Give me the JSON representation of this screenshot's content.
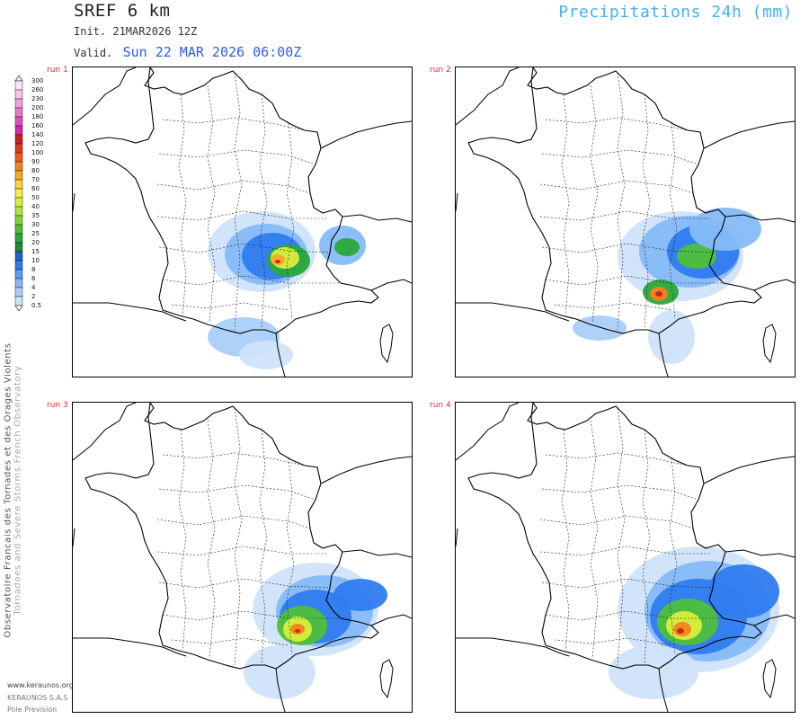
{
  "header": {
    "model": "SREF 6 km",
    "init": "Init.   21MAR2026 12Z",
    "valid_label": "Valid.",
    "valid_date": "Sun 22 MAR 2026 06:00Z",
    "parameter": "Precipitations 24h (mm)"
  },
  "legend": {
    "levels": [
      "300",
      "260",
      "230",
      "200",
      "180",
      "160",
      "140",
      "120",
      "100",
      "90",
      "80",
      "70",
      "60",
      "50",
      "40",
      "35",
      "30",
      "25",
      "20",
      "15",
      "10",
      "8",
      "6",
      "4",
      "2",
      "0.5"
    ],
    "colors": [
      "#fce4f4",
      "#f7c6ea",
      "#f0a0dc",
      "#e878cc",
      "#df50bd",
      "#d02aa8",
      "#c81e1e",
      "#e8341c",
      "#f05a1a",
      "#f5821f",
      "#f8a828",
      "#fbd33a",
      "#f5f03c",
      "#d8ef3c",
      "#b0e43a",
      "#7fd33a",
      "#4fbf3a",
      "#2aa83a",
      "#1f8a3a",
      "#1f5fd0",
      "#2f7cf0",
      "#5a9cf5",
      "#86baf8",
      "#a9cff8",
      "#cfe3fa"
    ]
  },
  "panels": [
    {
      "label": "run 1"
    },
    {
      "label": "run 2"
    },
    {
      "label": "run 3"
    },
    {
      "label": "run 4"
    }
  ],
  "side": {
    "line1": "Observatoire Francais des Tornades et des Orages Violents",
    "line2": "Tornadoes and Severe Storms French Observatory"
  },
  "footer": {
    "url": "www.keraunos.org",
    "company": "KERAUNOS S.A.S",
    "product": "Pole Prevision"
  }
}
